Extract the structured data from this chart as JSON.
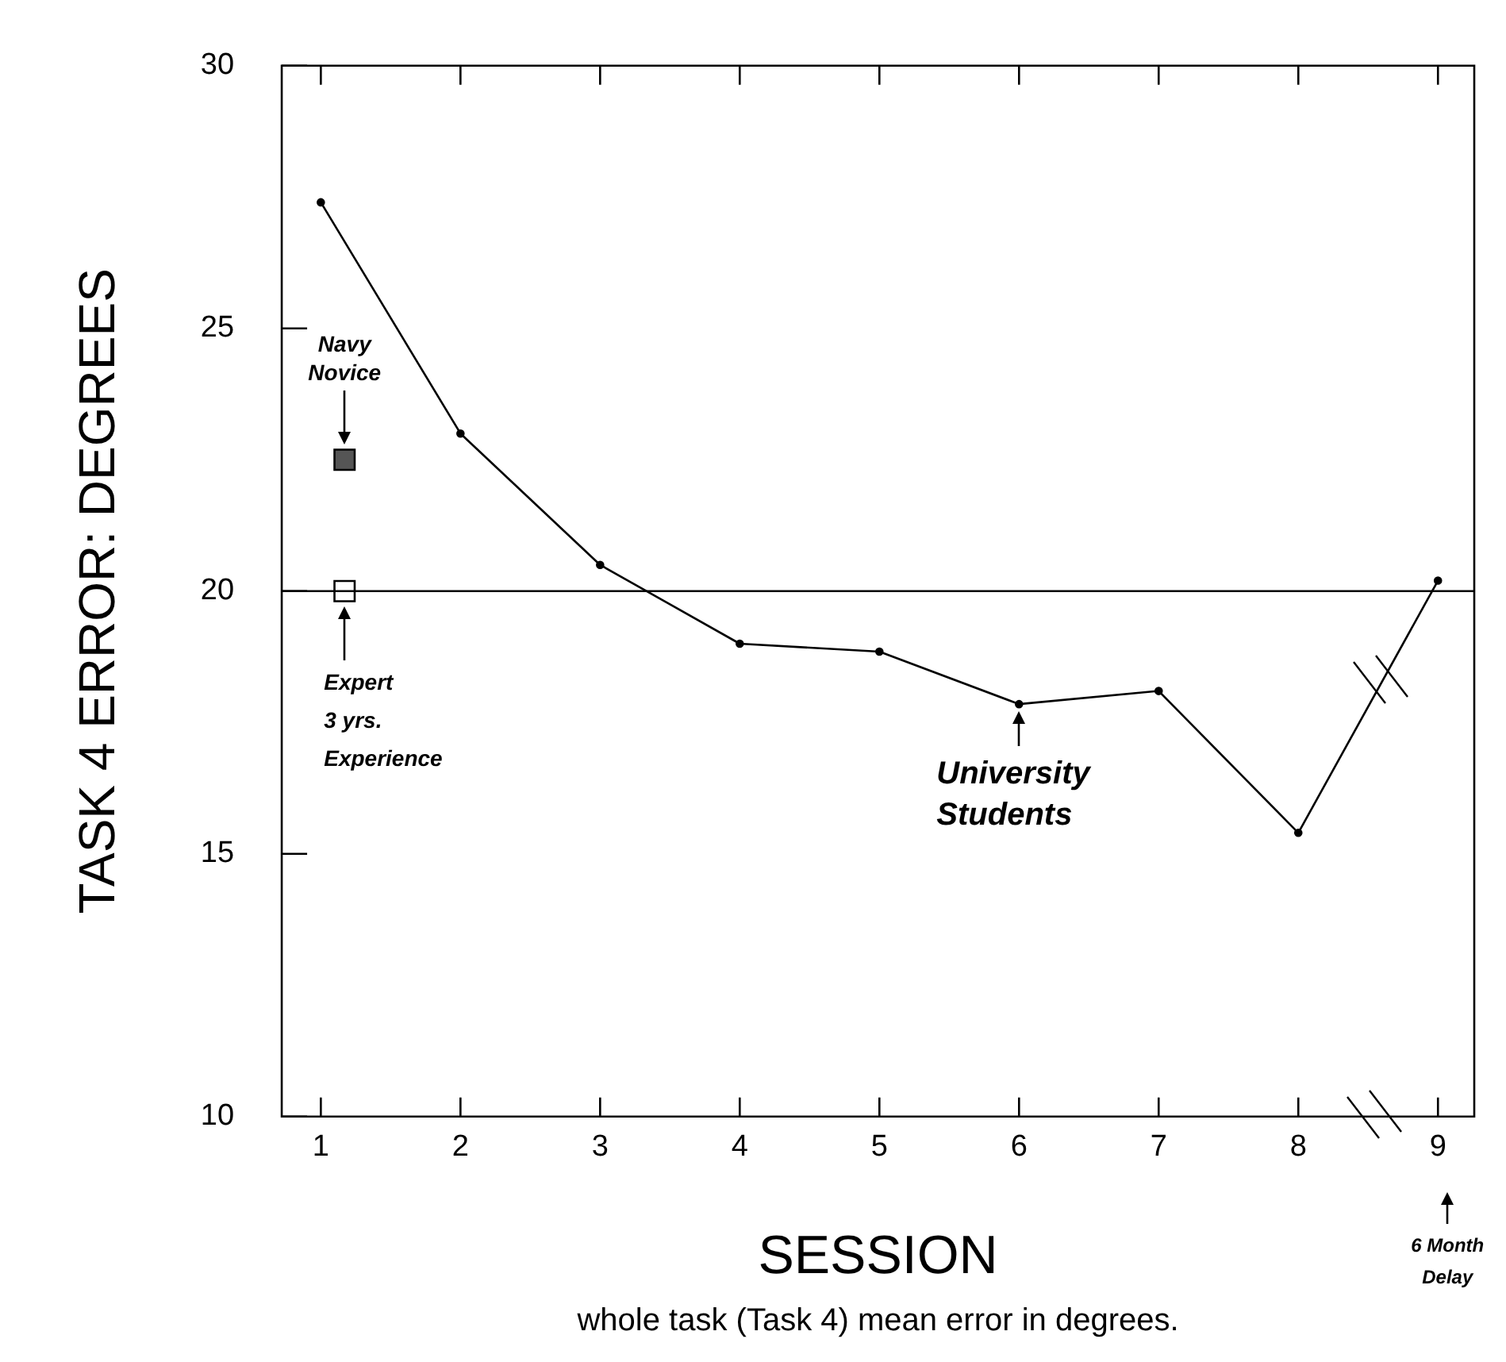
{
  "chart_data": {
    "type": "line",
    "xlabel": "SESSION",
    "ylabel": "TASK 4 ERROR: DEGREES",
    "annotations": [
      "whole task (Task 4) mean error in degrees.",
      {
        "text": "University\nStudents",
        "x": 6,
        "y": 17.85
      },
      "6 Month\nDelay"
    ],
    "series": [
      {
        "color": "#000000",
        "x": [
          1,
          2,
          3,
          4,
          5,
          6,
          7,
          8,
          9
        ],
        "values": [
          27.4,
          23.0,
          20.5,
          19.0,
          18.85,
          17.85,
          18.1,
          15.4,
          20.2
        ],
        "marker": "circle"
      },
      {
        "type": "scatter",
        "name": "Navy\nNovice",
        "color": "#555555",
        "x": [
          1.17
        ],
        "values": [
          22.5
        ],
        "marker": "square"
      },
      {
        "type": "scatter",
        "name": "Expert\n3 yrs.\nExperience",
        "color": "#ffffff",
        "x": [
          1.17
        ],
        "values": [
          20
        ],
        "marker": "square"
      }
    ],
    "ref_lines": [
      {
        "axis": "y",
        "value": 20
      }
    ],
    "xlim": [
      0.72,
      9.26
    ],
    "xticks": [
      1,
      2,
      3,
      4,
      5,
      6,
      7,
      8,
      9
    ],
    "ylim": [
      10,
      30
    ],
    "yticks": [
      10,
      15,
      20,
      25,
      30
    ],
    "grid": false,
    "legend": "top left"
  }
}
